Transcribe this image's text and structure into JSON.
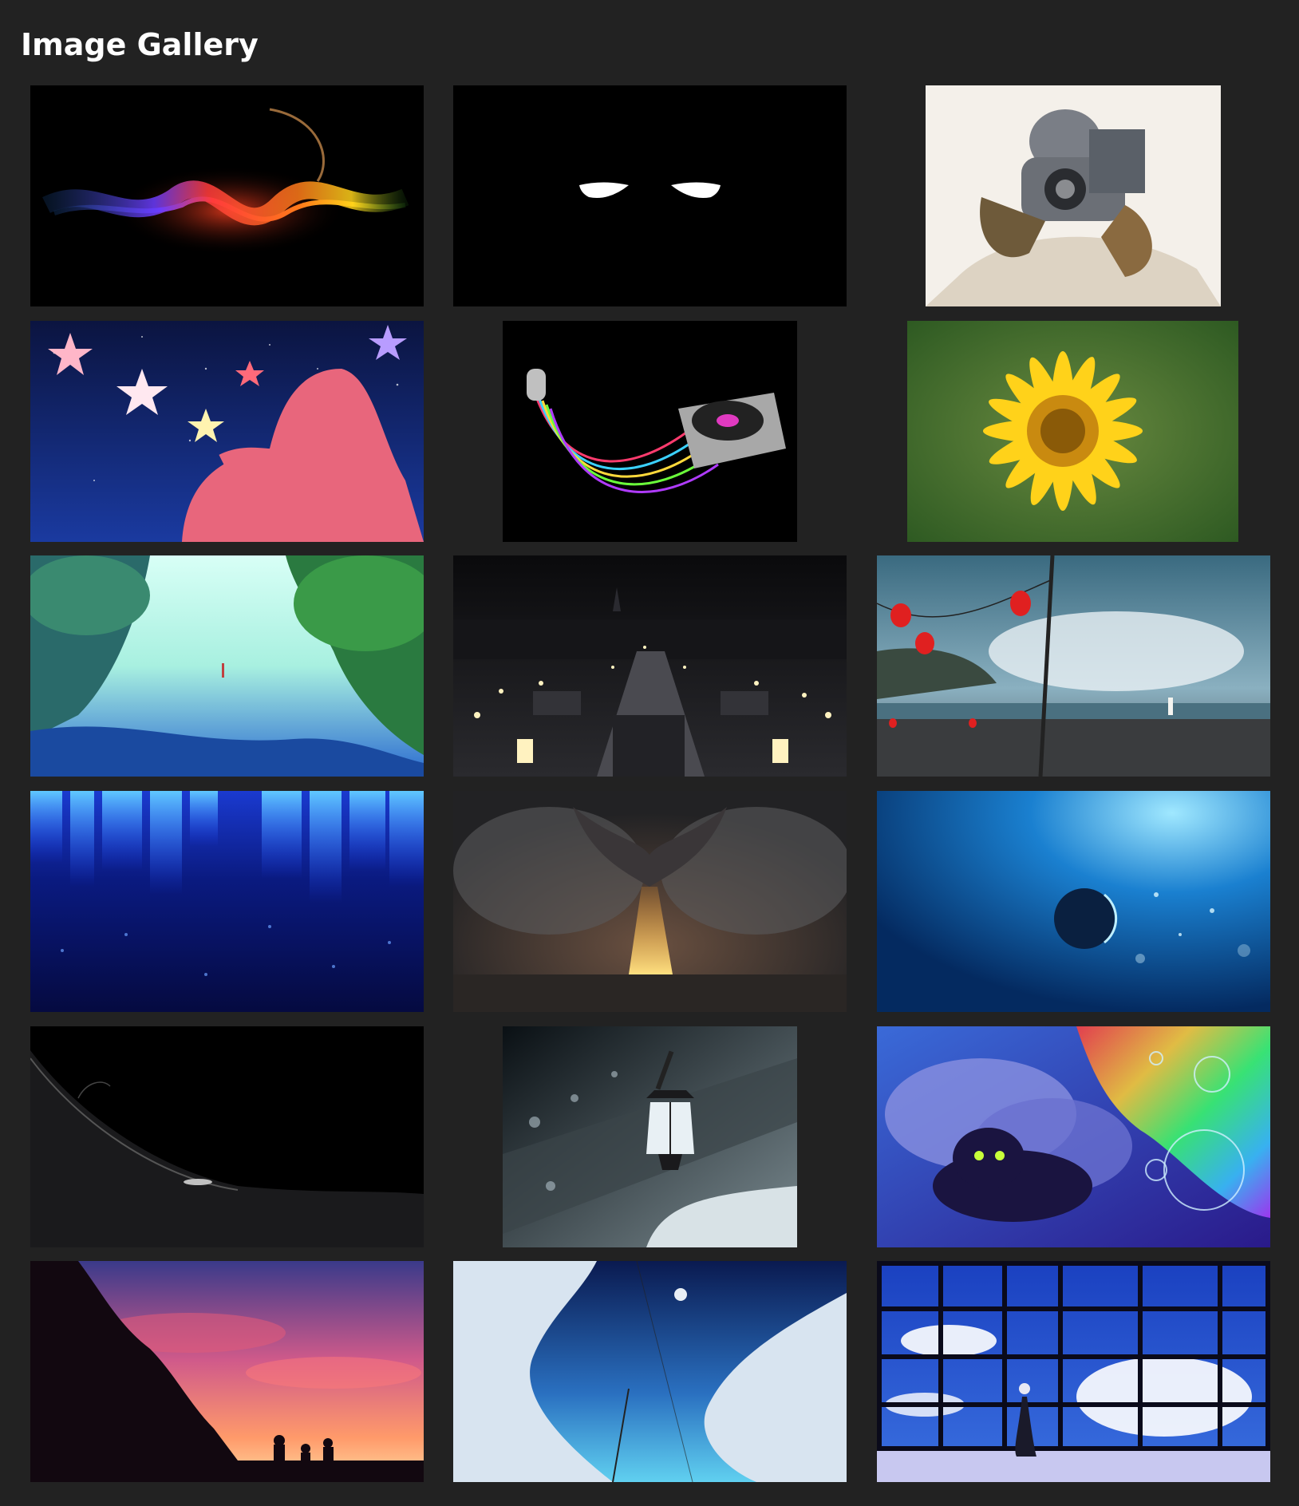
{
  "page": {
    "title": "Image Gallery",
    "background": "#222222"
  },
  "gallery": {
    "items": [
      {
        "name": "rainbow-wave-thumbnail"
      },
      {
        "name": "glowing-eyes-thumbnail"
      },
      {
        "name": "robot-painting-thumbnail"
      },
      {
        "name": "star-silhouette-thumbnail"
      },
      {
        "name": "turntable-music-thumbnail"
      },
      {
        "name": "yellow-flower-thumbnail"
      },
      {
        "name": "forest-lake-thumbnail"
      },
      {
        "name": "night-city-park-thumbnail"
      },
      {
        "name": "lantern-harbor-thumbnail"
      },
      {
        "name": "blue-aurora-thumbnail"
      },
      {
        "name": "fire-dragon-thumbnail"
      },
      {
        "name": "underwater-planet-thumbnail"
      },
      {
        "name": "dark-landscape-thumbnail"
      },
      {
        "name": "street-lamp-snow-thumbnail"
      },
      {
        "name": "cat-rainbow-clouds-thumbnail"
      },
      {
        "name": "sunset-silhouettes-thumbnail"
      },
      {
        "name": "sky-clouds-moon-thumbnail"
      },
      {
        "name": "window-clouds-room-thumbnail"
      }
    ]
  }
}
